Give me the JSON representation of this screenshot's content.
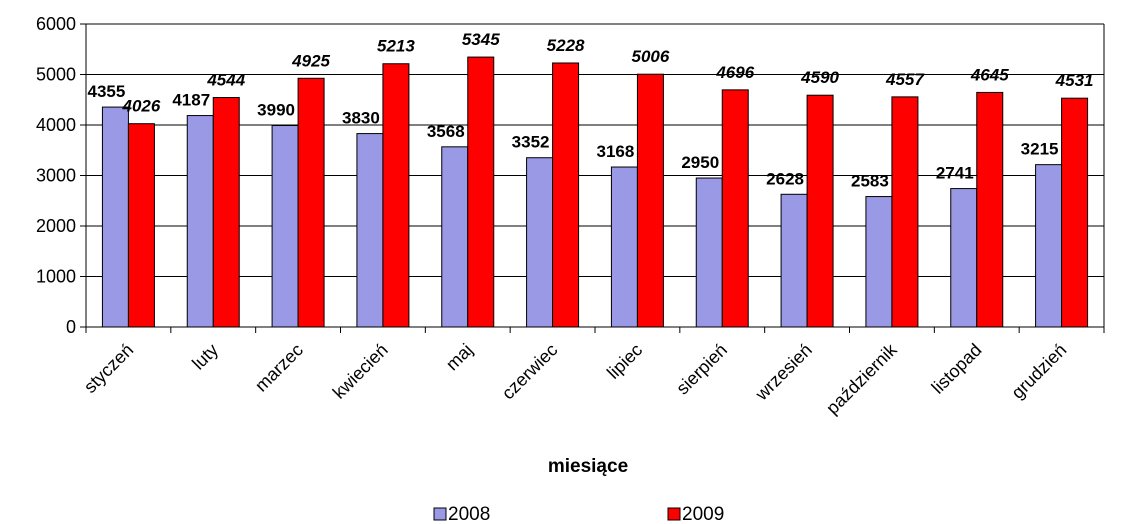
{
  "chart_data": {
    "type": "bar",
    "categories": [
      "styczeń",
      "luty",
      "marzec",
      "kwiecień",
      "maj",
      "czerwiec",
      "lipiec",
      "sierpień",
      "wrzesień",
      "październik",
      "listopad",
      "grudzień"
    ],
    "series": [
      {
        "name": "2008",
        "color": "#9999e6",
        "values": [
          4355,
          4187,
          3990,
          3830,
          3568,
          3352,
          3168,
          2950,
          2628,
          2583,
          2741,
          3215
        ]
      },
      {
        "name": "2009",
        "color": "#ff0000",
        "values": [
          4026,
          4544,
          4925,
          5213,
          5345,
          5228,
          5006,
          4696,
          4590,
          4557,
          4645,
          4531
        ]
      }
    ],
    "title": "",
    "xlabel": "miesiące",
    "ylabel": "",
    "ylim": [
      0,
      6000
    ],
    "yticks": [
      "0",
      "1000",
      "2000",
      "3000",
      "4000",
      "5000",
      "6000"
    ],
    "grid": true,
    "legend": "bottom"
  }
}
